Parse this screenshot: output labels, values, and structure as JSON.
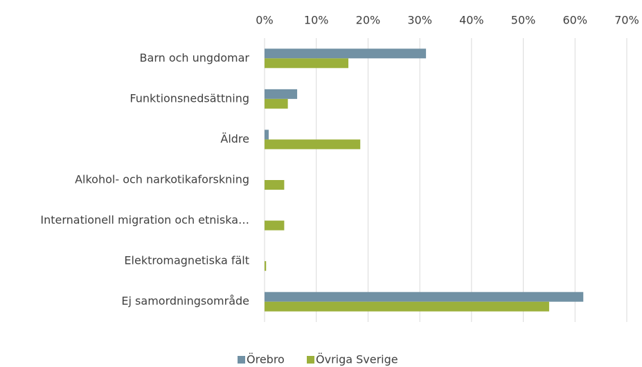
{
  "chart_data": {
    "type": "bar",
    "orientation": "horizontal",
    "categories": [
      "Barn och ungdomar",
      "Funktionsnedsättning",
      "Äldre",
      "Alkohol- och narkotikaforskning",
      "Internationell migration och etniska…",
      "Elektromagnetiska fält",
      "Ej samordningsområde"
    ],
    "series": [
      {
        "name": "Örebro",
        "color": "#7191a4",
        "values": [
          31.2,
          6.3,
          0.8,
          0,
          0,
          0,
          61.6
        ]
      },
      {
        "name": "Övriga Sverige",
        "color": "#9bb03b",
        "values": [
          16.2,
          4.5,
          18.5,
          3.8,
          3.8,
          0.3,
          55.0
        ]
      }
    ],
    "xlim": [
      0,
      70
    ],
    "xticks": [
      {
        "value": 0,
        "label": "0%"
      },
      {
        "value": 10,
        "label": "10%"
      },
      {
        "value": 20,
        "label": "20%"
      },
      {
        "value": 30,
        "label": "30%"
      },
      {
        "value": 40,
        "label": "40%"
      },
      {
        "value": 50,
        "label": "50%"
      },
      {
        "value": 60,
        "label": "60%"
      },
      {
        "value": 70,
        "label": "70%"
      }
    ],
    "grid": true,
    "legend": "bottom"
  }
}
